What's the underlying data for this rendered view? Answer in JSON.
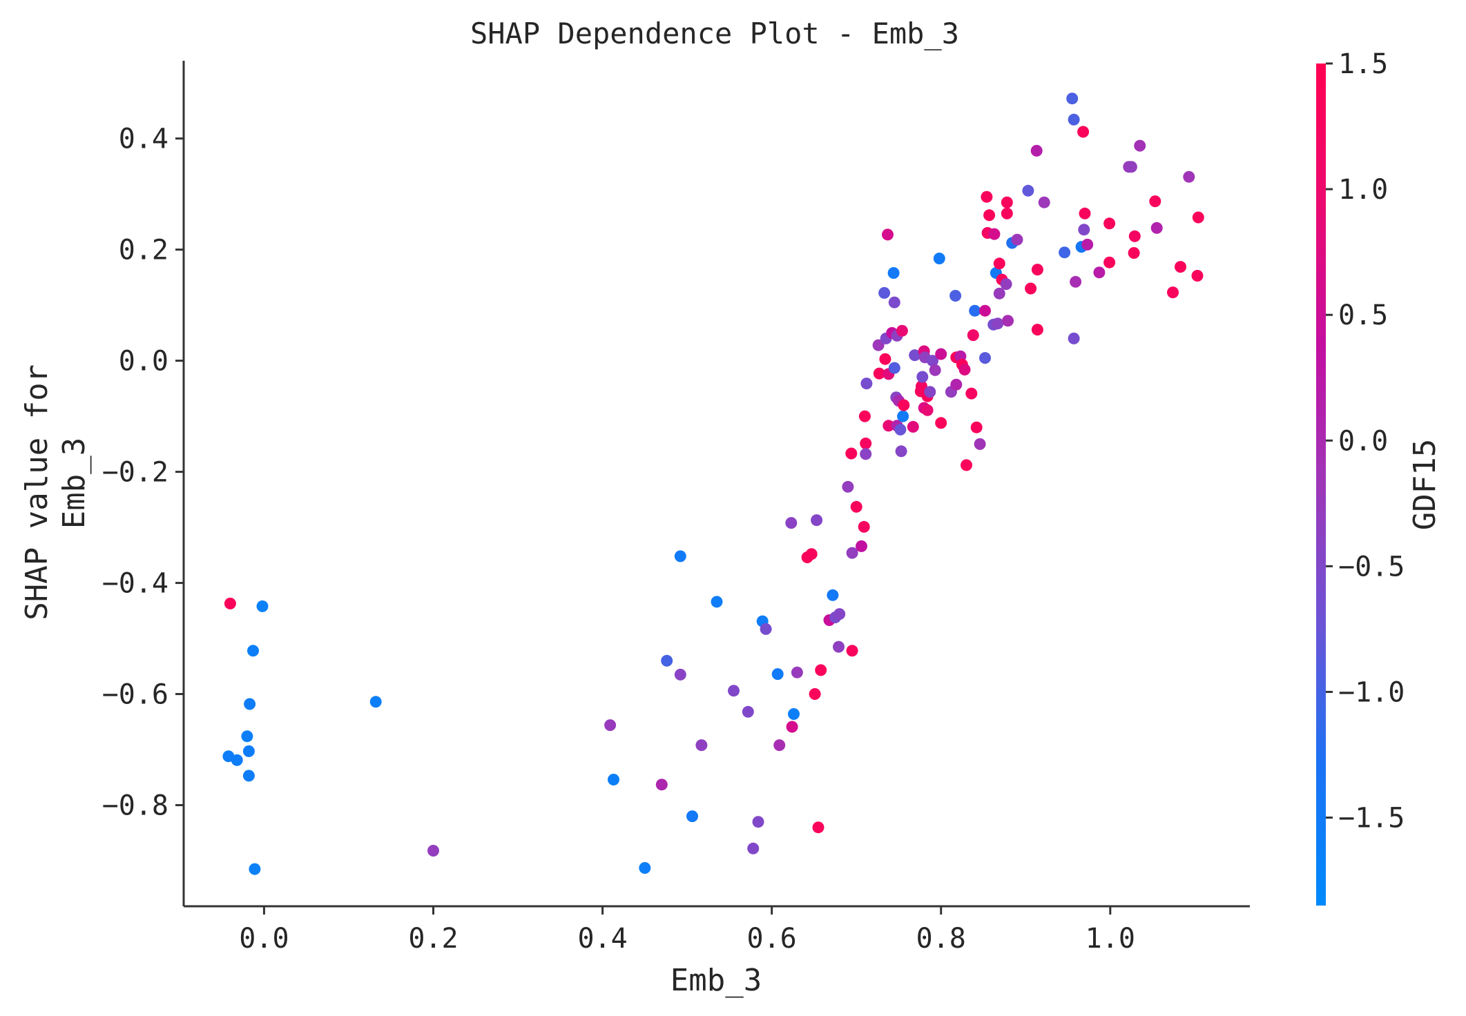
{
  "chart_data": {
    "type": "scatter",
    "title": "SHAP Dependence Plot - Emb_3",
    "xlabel": "Emb_3",
    "ylabel_lines": [
      "SHAP value for",
      "Emb_3"
    ],
    "xlim": [
      -0.095,
      1.165
    ],
    "ylim": [
      -0.982,
      0.54
    ],
    "x_ticks": [
      0.0,
      0.2,
      0.4,
      0.6,
      0.8,
      1.0
    ],
    "x_tick_labels": [
      "0.0",
      "0.2",
      "0.4",
      "0.6",
      "0.8",
      "1.0"
    ],
    "y_ticks": [
      0.4,
      0.2,
      0.0,
      -0.2,
      -0.4,
      -0.6,
      -0.8
    ],
    "y_tick_labels": [
      "0.4",
      "0.2",
      "0.0",
      "−0.2",
      "−0.4",
      "−0.6",
      "−0.8"
    ],
    "grid": false,
    "colorbar": {
      "label": "GDF15",
      "range": [
        -1.85,
        1.5
      ],
      "ticks": [
        1.5,
        1.0,
        0.5,
        0.0,
        -0.5,
        -1.0,
        -1.5
      ],
      "tick_labels": [
        "1.5",
        "1.0",
        "0.5",
        "0.0",
        "−0.5",
        "−1.0",
        "−1.5"
      ],
      "colormap": [
        "#008afb",
        "#1b72f4",
        "#6b54d6",
        "#9e37b8",
        "#c40ea0",
        "#ec0a70",
        "#ff0052"
      ]
    },
    "points": [
      {
        "x": -0.04,
        "y": -0.437,
        "c": 1.35
      },
      {
        "x": -0.002,
        "y": -0.442,
        "c": -1.65
      },
      {
        "x": -0.013,
        "y": -0.522,
        "c": -1.6
      },
      {
        "x": -0.017,
        "y": -0.618,
        "c": -1.55
      },
      {
        "x": -0.02,
        "y": -0.676,
        "c": -1.6
      },
      {
        "x": -0.018,
        "y": -0.703,
        "c": -1.55
      },
      {
        "x": -0.042,
        "y": -0.712,
        "c": -1.55
      },
      {
        "x": -0.032,
        "y": -0.719,
        "c": -1.55
      },
      {
        "x": -0.018,
        "y": -0.747,
        "c": -1.55
      },
      {
        "x": -0.011,
        "y": -0.915,
        "c": -1.65
      },
      {
        "x": 0.132,
        "y": -0.614,
        "c": -1.6
      },
      {
        "x": 0.2,
        "y": -0.882,
        "c": -0.3
      },
      {
        "x": 0.409,
        "y": -0.656,
        "c": -0.25
      },
      {
        "x": 0.413,
        "y": -0.754,
        "c": -1.6
      },
      {
        "x": 0.45,
        "y": -0.913,
        "c": -1.6
      },
      {
        "x": 0.47,
        "y": -0.763,
        "c": 0.05
      },
      {
        "x": 0.476,
        "y": -0.54,
        "c": -1.0
      },
      {
        "x": 0.492,
        "y": -0.352,
        "c": -1.5
      },
      {
        "x": 0.492,
        "y": -0.565,
        "c": -0.4
      },
      {
        "x": 0.506,
        "y": -0.82,
        "c": -1.45
      },
      {
        "x": 0.517,
        "y": -0.692,
        "c": -0.35
      },
      {
        "x": 0.535,
        "y": -0.434,
        "c": -1.55
      },
      {
        "x": 0.555,
        "y": -0.594,
        "c": -0.5
      },
      {
        "x": 0.572,
        "y": -0.632,
        "c": -0.5
      },
      {
        "x": 0.578,
        "y": -0.878,
        "c": -0.5
      },
      {
        "x": 0.584,
        "y": -0.83,
        "c": -0.5
      },
      {
        "x": 0.589,
        "y": -0.469,
        "c": -1.55
      },
      {
        "x": 0.593,
        "y": -0.483,
        "c": -0.6
      },
      {
        "x": 0.607,
        "y": -0.564,
        "c": -1.5
      },
      {
        "x": 0.609,
        "y": -0.692,
        "c": -0.05
      },
      {
        "x": 0.623,
        "y": -0.292,
        "c": -0.4
      },
      {
        "x": 0.624,
        "y": -0.659,
        "c": 0.6
      },
      {
        "x": 0.626,
        "y": -0.636,
        "c": -1.6
      },
      {
        "x": 0.63,
        "y": -0.561,
        "c": -0.25
      },
      {
        "x": 0.642,
        "y": -0.354,
        "c": 1.35
      },
      {
        "x": 0.647,
        "y": -0.348,
        "c": 1.3
      },
      {
        "x": 0.651,
        "y": -0.6,
        "c": 1.35
      },
      {
        "x": 0.653,
        "y": -0.287,
        "c": -0.45
      },
      {
        "x": 0.655,
        "y": -0.84,
        "c": 1.35
      },
      {
        "x": 0.658,
        "y": -0.557,
        "c": 1.35
      },
      {
        "x": 0.668,
        "y": -0.467,
        "c": 0.45
      },
      {
        "x": 0.672,
        "y": -0.422,
        "c": -1.45
      },
      {
        "x": 0.675,
        "y": -0.462,
        "c": -0.55
      },
      {
        "x": 0.68,
        "y": -0.456,
        "c": -0.45
      },
      {
        "x": 0.679,
        "y": -0.515,
        "c": -0.35
      },
      {
        "x": 0.69,
        "y": -0.227,
        "c": -0.3
      },
      {
        "x": 0.694,
        "y": -0.167,
        "c": 1.35
      },
      {
        "x": 0.695,
        "y": -0.346,
        "c": -0.3
      },
      {
        "x": 0.695,
        "y": -0.522,
        "c": 1.3
      },
      {
        "x": 0.7,
        "y": -0.263,
        "c": 1.3
      },
      {
        "x": 0.706,
        "y": -0.334,
        "c": 0.35
      },
      {
        "x": 0.709,
        "y": -0.299,
        "c": 1.25
      },
      {
        "x": 0.71,
        "y": -0.1,
        "c": 1.35
      },
      {
        "x": 0.711,
        "y": -0.149,
        "c": 1.25
      },
      {
        "x": 0.711,
        "y": -0.168,
        "c": -0.4
      },
      {
        "x": 0.712,
        "y": -0.041,
        "c": -0.6
      },
      {
        "x": 0.726,
        "y": 0.028,
        "c": -0.2
      },
      {
        "x": 0.727,
        "y": -0.023,
        "c": 1.3
      },
      {
        "x": 0.733,
        "y": 0.122,
        "c": -0.85
      },
      {
        "x": 0.734,
        "y": 0.003,
        "c": 1.35
      },
      {
        "x": 0.735,
        "y": 0.04,
        "c": -0.5
      },
      {
        "x": 0.737,
        "y": 0.227,
        "c": 0.6
      },
      {
        "x": 0.738,
        "y": -0.024,
        "c": 0.8
      },
      {
        "x": 0.738,
        "y": -0.117,
        "c": 0.9
      },
      {
        "x": 0.742,
        "y": 0.05,
        "c": 0.4
      },
      {
        "x": 0.744,
        "y": 0.158,
        "c": -1.45
      },
      {
        "x": 0.745,
        "y": 0.105,
        "c": -0.55
      },
      {
        "x": 0.745,
        "y": -0.013,
        "c": -0.9
      },
      {
        "x": 0.747,
        "y": -0.066,
        "c": -0.4
      },
      {
        "x": 0.748,
        "y": 0.045,
        "c": -0.35
      },
      {
        "x": 0.748,
        "y": -0.117,
        "c": 0.1
      },
      {
        "x": 0.75,
        "y": -0.072,
        "c": 0.0
      },
      {
        "x": 0.752,
        "y": -0.124,
        "c": -0.75
      },
      {
        "x": 0.753,
        "y": -0.163,
        "c": -0.45
      },
      {
        "x": 0.754,
        "y": 0.054,
        "c": 0.9
      },
      {
        "x": 0.755,
        "y": -0.1,
        "c": -1.5
      },
      {
        "x": 0.756,
        "y": -0.08,
        "c": 1.3
      },
      {
        "x": 0.767,
        "y": -0.119,
        "c": 0.8
      },
      {
        "x": 0.769,
        "y": 0.01,
        "c": -0.6
      },
      {
        "x": 0.776,
        "y": -0.055,
        "c": 1.3
      },
      {
        "x": 0.777,
        "y": -0.046,
        "c": 1.2
      },
      {
        "x": 0.778,
        "y": -0.029,
        "c": -0.6
      },
      {
        "x": 0.78,
        "y": 0.017,
        "c": 0.75
      },
      {
        "x": 0.78,
        "y": -0.085,
        "c": 0.7
      },
      {
        "x": 0.781,
        "y": 0.006,
        "c": -0.35
      },
      {
        "x": 0.784,
        "y": -0.064,
        "c": 1.35
      },
      {
        "x": 0.784,
        "y": -0.089,
        "c": 0.9
      },
      {
        "x": 0.787,
        "y": -0.056,
        "c": -0.45
      },
      {
        "x": 0.79,
        "y": 0.0,
        "c": -0.5
      },
      {
        "x": 0.793,
        "y": -0.017,
        "c": -0.2
      },
      {
        "x": 0.798,
        "y": 0.184,
        "c": -1.5
      },
      {
        "x": 0.8,
        "y": -0.112,
        "c": 1.35
      },
      {
        "x": 0.8,
        "y": 0.012,
        "c": 0.5
      },
      {
        "x": 0.812,
        "y": -0.056,
        "c": -0.3
      },
      {
        "x": 0.817,
        "y": 0.117,
        "c": -0.95
      },
      {
        "x": 0.818,
        "y": -0.043,
        "c": 0.1
      },
      {
        "x": 0.818,
        "y": 0.006,
        "c": 1.3
      },
      {
        "x": 0.823,
        "y": 0.008,
        "c": 0.2
      },
      {
        "x": 0.825,
        "y": -0.007,
        "c": 1.35
      },
      {
        "x": 0.828,
        "y": -0.016,
        "c": 0.75
      },
      {
        "x": 0.83,
        "y": -0.188,
        "c": 1.35
      },
      {
        "x": 0.836,
        "y": -0.059,
        "c": 1.25
      },
      {
        "x": 0.838,
        "y": 0.046,
        "c": 1.1
      },
      {
        "x": 0.84,
        "y": 0.09,
        "c": -1.2
      },
      {
        "x": 0.842,
        "y": -0.12,
        "c": 1.3
      },
      {
        "x": 0.846,
        "y": -0.15,
        "c": -0.15
      },
      {
        "x": 0.852,
        "y": 0.005,
        "c": -0.85
      },
      {
        "x": 0.852,
        "y": 0.09,
        "c": 0.5
      },
      {
        "x": 0.854,
        "y": 0.295,
        "c": 1.3
      },
      {
        "x": 0.855,
        "y": 0.23,
        "c": 1.2
      },
      {
        "x": 0.857,
        "y": 0.262,
        "c": 1.35
      },
      {
        "x": 0.862,
        "y": 0.065,
        "c": -0.6
      },
      {
        "x": 0.863,
        "y": 0.228,
        "c": 0.6
      },
      {
        "x": 0.865,
        "y": 0.158,
        "c": -1.45
      },
      {
        "x": 0.867,
        "y": 0.067,
        "c": -0.4
      },
      {
        "x": 0.869,
        "y": 0.175,
        "c": 1.35
      },
      {
        "x": 0.869,
        "y": 0.121,
        "c": -0.25
      },
      {
        "x": 0.872,
        "y": 0.146,
        "c": 1.3
      },
      {
        "x": 0.877,
        "y": 0.138,
        "c": -0.3
      },
      {
        "x": 0.878,
        "y": 0.285,
        "c": 1.3
      },
      {
        "x": 0.878,
        "y": 0.265,
        "c": 1.3
      },
      {
        "x": 0.879,
        "y": 0.072,
        "c": -0.05
      },
      {
        "x": 0.884,
        "y": 0.212,
        "c": -1.25
      },
      {
        "x": 0.89,
        "y": 0.218,
        "c": -0.2
      },
      {
        "x": 0.903,
        "y": 0.306,
        "c": -0.8
      },
      {
        "x": 0.906,
        "y": 0.13,
        "c": 1.35
      },
      {
        "x": 0.913,
        "y": 0.378,
        "c": 0.15
      },
      {
        "x": 0.914,
        "y": 0.164,
        "c": 1.3
      },
      {
        "x": 0.914,
        "y": 0.056,
        "c": 1.35
      },
      {
        "x": 0.922,
        "y": 0.285,
        "c": -0.2
      },
      {
        "x": 0.946,
        "y": 0.195,
        "c": -1.05
      },
      {
        "x": 0.955,
        "y": 0.472,
        "c": -0.95
      },
      {
        "x": 0.957,
        "y": 0.434,
        "c": -0.95
      },
      {
        "x": 0.957,
        "y": 0.04,
        "c": -0.6
      },
      {
        "x": 0.959,
        "y": 0.142,
        "c": -0.05
      },
      {
        "x": 0.966,
        "y": 0.205,
        "c": -1.4
      },
      {
        "x": 0.968,
        "y": 0.412,
        "c": 1.35
      },
      {
        "x": 0.969,
        "y": 0.236,
        "c": -0.5
      },
      {
        "x": 0.97,
        "y": 0.265,
        "c": 1.3
      },
      {
        "x": 0.973,
        "y": 0.209,
        "c": 0.2
      },
      {
        "x": 0.987,
        "y": 0.159,
        "c": 0.2
      },
      {
        "x": 0.999,
        "y": 0.177,
        "c": 1.3
      },
      {
        "x": 0.999,
        "y": 0.247,
        "c": 1.3
      },
      {
        "x": 1.022,
        "y": 0.349,
        "c": -0.25
      },
      {
        "x": 1.025,
        "y": 0.349,
        "c": -0.3
      },
      {
        "x": 1.028,
        "y": 0.194,
        "c": 1.35
      },
      {
        "x": 1.029,
        "y": 0.224,
        "c": 1.2
      },
      {
        "x": 1.035,
        "y": 0.387,
        "c": -0.1
      },
      {
        "x": 1.053,
        "y": 0.287,
        "c": 1.3
      },
      {
        "x": 1.055,
        "y": 0.239,
        "c": 0.1
      },
      {
        "x": 1.074,
        "y": 0.123,
        "c": 1.3
      },
      {
        "x": 1.083,
        "y": 0.169,
        "c": 1.35
      },
      {
        "x": 1.093,
        "y": 0.331,
        "c": -0.15
      },
      {
        "x": 1.103,
        "y": 0.153,
        "c": 1.3
      },
      {
        "x": 1.104,
        "y": 0.258,
        "c": 1.35
      }
    ]
  }
}
